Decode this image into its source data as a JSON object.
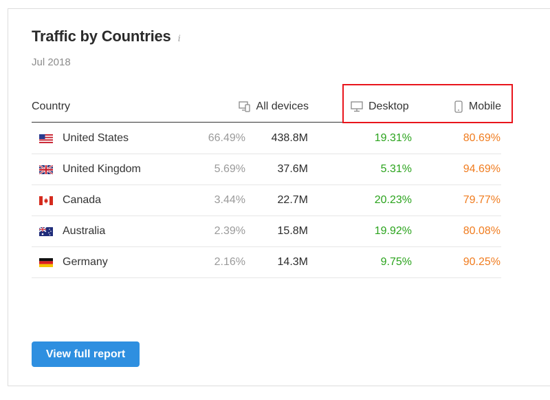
{
  "widget": {
    "title": "Traffic by Countries",
    "info_icon": "i",
    "date": "Jul 2018"
  },
  "table": {
    "headers": {
      "country": "Country",
      "all_devices": "All devices",
      "desktop": "Desktop",
      "mobile": "Mobile"
    },
    "rows": [
      {
        "country": "United States",
        "flag": "us-flag",
        "share": "66.49%",
        "traffic": "438.8M",
        "desktop": "19.31%",
        "mobile": "80.69%"
      },
      {
        "country": "United Kingdom",
        "flag": "uk-flag",
        "share": "5.69%",
        "traffic": "37.6M",
        "desktop": "5.31%",
        "mobile": "94.69%"
      },
      {
        "country": "Canada",
        "flag": "ca-flag",
        "share": "3.44%",
        "traffic": "22.7M",
        "desktop": "20.23%",
        "mobile": "79.77%"
      },
      {
        "country": "Australia",
        "flag": "au-flag",
        "share": "2.39%",
        "traffic": "15.8M",
        "desktop": "19.92%",
        "mobile": "80.08%"
      },
      {
        "country": "Germany",
        "flag": "de-flag",
        "share": "2.16%",
        "traffic": "14.3M",
        "desktop": "9.75%",
        "mobile": "90.25%"
      }
    ]
  },
  "button": {
    "label": "View full report"
  },
  "colors": {
    "desktop": "#2aa31c",
    "mobile": "#f07c1f",
    "button": "#2e8fe0",
    "highlight": "#e8141b"
  }
}
